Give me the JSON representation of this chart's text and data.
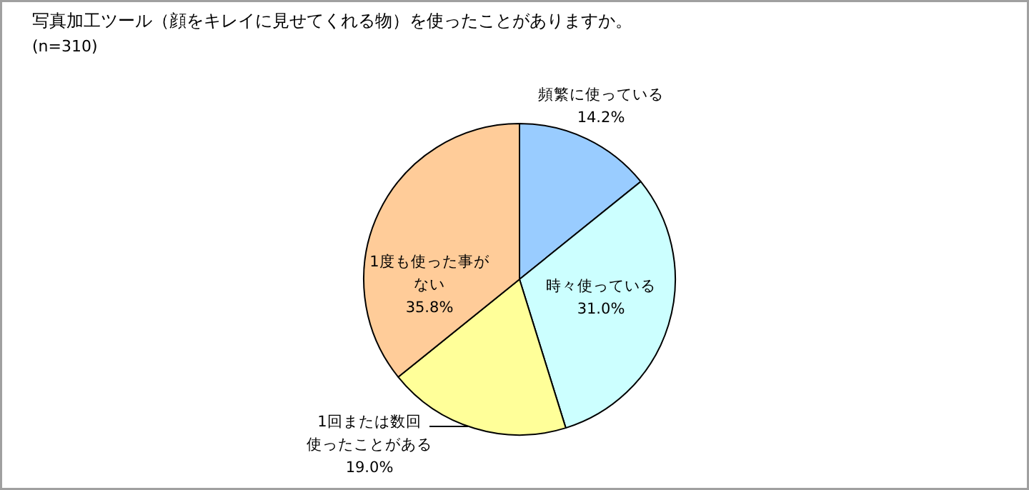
{
  "chart_data": {
    "type": "pie",
    "title": "写真加工ツール（顔をキレイに見せてくれる物）を使ったことがありますか。",
    "subtitle": "(n=310)",
    "categories": [
      "頻繁に使っている",
      "時々使っている",
      "1回または数回使ったことがある",
      "1度も使った事がない"
    ],
    "values": [
      14.2,
      31.0,
      19.0,
      35.8
    ],
    "colors": [
      "#99ccff",
      "#ccffff",
      "#ffff99",
      "#ffcc99"
    ],
    "value_labels": [
      "14.2%",
      "31.0%",
      "19.0%",
      "35.8%"
    ]
  }
}
